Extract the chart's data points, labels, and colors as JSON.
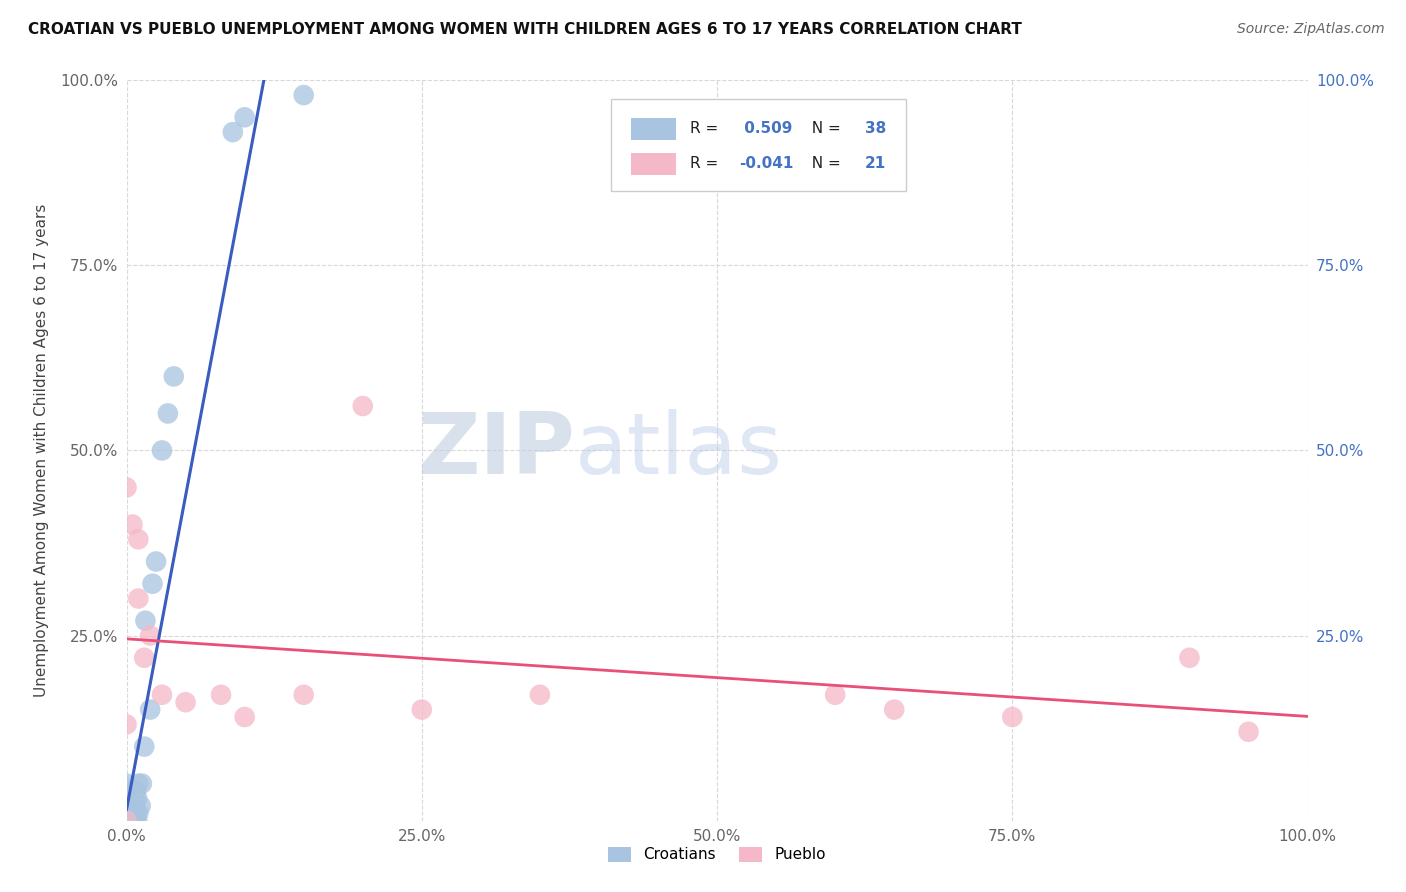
{
  "title": "CROATIAN VS PUEBLO UNEMPLOYMENT AMONG WOMEN WITH CHILDREN AGES 6 TO 17 YEARS CORRELATION CHART",
  "source": "Source: ZipAtlas.com",
  "ylabel": "Unemployment Among Women with Children Ages 6 to 17 years",
  "xlabel_croatians": "Croatians",
  "xlabel_pueblo": "Pueblo",
  "croatian_R": 0.509,
  "croatian_N": 38,
  "pueblo_R": -0.041,
  "pueblo_N": 21,
  "xlim": [
    0.0,
    1.0
  ],
  "ylim": [
    0.0,
    1.0
  ],
  "xticks": [
    0.0,
    0.25,
    0.5,
    0.75,
    1.0
  ],
  "yticks": [
    0.0,
    0.25,
    0.5,
    0.75,
    1.0
  ],
  "xticklabels": [
    "0.0%",
    "25.0%",
    "50.0%",
    "75.0%",
    "100.0%"
  ],
  "right_yticklabels": [
    "",
    "25.0%",
    "50.0%",
    "75.0%",
    "100.0%"
  ],
  "background_color": "#ffffff",
  "grid_color": "#d8d8d8",
  "croatian_color": "#a8c4e0",
  "pueblo_color": "#f4b8c8",
  "croatian_line_color": "#3a5bbf",
  "pueblo_line_color": "#e8507a",
  "watermark_zip": "ZIP",
  "watermark_atlas": "atlas",
  "croatian_points_x": [
    0.0,
    0.0,
    0.0,
    0.0,
    0.0,
    0.0,
    0.0,
    0.0,
    0.0,
    0.0,
    0.003,
    0.003,
    0.003,
    0.004,
    0.005,
    0.005,
    0.006,
    0.007,
    0.007,
    0.008,
    0.008,
    0.009,
    0.009,
    0.01,
    0.01,
    0.012,
    0.013,
    0.015,
    0.016,
    0.02,
    0.022,
    0.025,
    0.03,
    0.035,
    0.04,
    0.09,
    0.1,
    0.15
  ],
  "croatian_points_y": [
    0.0,
    0.0,
    0.01,
    0.01,
    0.02,
    0.02,
    0.03,
    0.03,
    0.04,
    0.05,
    0.0,
    0.01,
    0.02,
    0.01,
    0.0,
    0.01,
    0.02,
    0.0,
    0.02,
    0.01,
    0.04,
    0.0,
    0.03,
    0.01,
    0.05,
    0.02,
    0.05,
    0.1,
    0.27,
    0.15,
    0.32,
    0.35,
    0.5,
    0.55,
    0.6,
    0.93,
    0.95,
    0.98
  ],
  "pueblo_points_x": [
    0.0,
    0.0,
    0.0,
    0.005,
    0.01,
    0.01,
    0.015,
    0.02,
    0.03,
    0.05,
    0.08,
    0.1,
    0.15,
    0.2,
    0.25,
    0.35,
    0.6,
    0.65,
    0.75,
    0.9,
    0.95
  ],
  "pueblo_points_y": [
    0.0,
    0.13,
    0.45,
    0.4,
    0.3,
    0.38,
    0.22,
    0.25,
    0.17,
    0.16,
    0.17,
    0.14,
    0.17,
    0.56,
    0.15,
    0.17,
    0.17,
    0.15,
    0.14,
    0.22,
    0.12
  ]
}
